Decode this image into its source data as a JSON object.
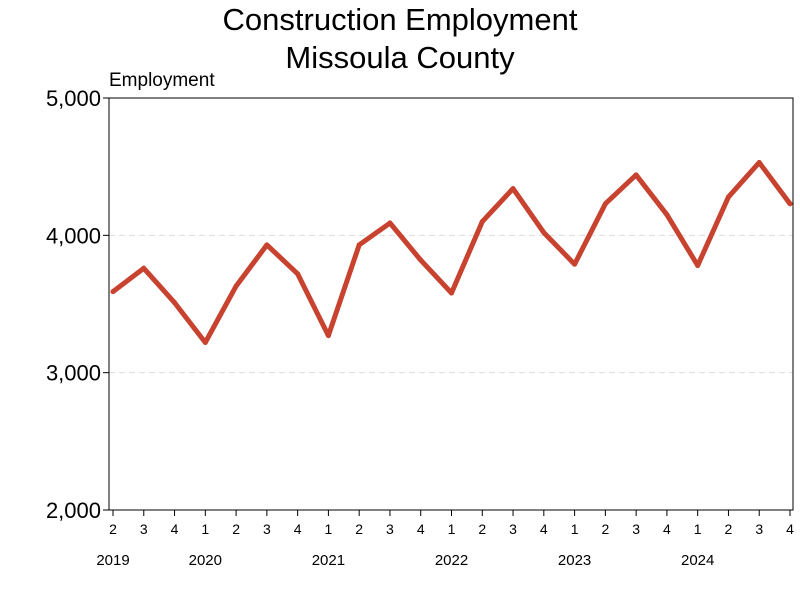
{
  "chart_data": {
    "type": "line",
    "title": [
      "Construction Employment",
      "Missoula County"
    ],
    "ylabel": "Employment",
    "ylim": [
      2000,
      5000
    ],
    "yticks": [
      2000,
      3000,
      4000,
      5000
    ],
    "ytick_labels": [
      "2,000",
      "3,000",
      "4,000",
      "5,000"
    ],
    "grid": "horizontal dashed",
    "line_color": "#c8432f",
    "x": [
      "2019 Q2",
      "2019 Q3",
      "2019 Q4",
      "2020 Q1",
      "2020 Q2",
      "2020 Q3",
      "2020 Q4",
      "2021 Q1",
      "2021 Q2",
      "2021 Q3",
      "2021 Q4",
      "2022 Q1",
      "2022 Q2",
      "2022 Q3",
      "2022 Q4",
      "2023 Q1",
      "2023 Q2",
      "2023 Q3",
      "2023 Q4",
      "2024 Q1",
      "2024 Q2",
      "2024 Q3",
      "2024 Q4"
    ],
    "quarter_labels": [
      "2",
      "3",
      "4",
      "1",
      "2",
      "3",
      "4",
      "1",
      "2",
      "3",
      "4",
      "1",
      "2",
      "3",
      "4",
      "1",
      "2",
      "3",
      "4",
      "1",
      "2",
      "3",
      "4"
    ],
    "year_labels": [
      {
        "label": "2019",
        "index": 0
      },
      {
        "label": "2020",
        "index": 3
      },
      {
        "label": "2021",
        "index": 7
      },
      {
        "label": "2022",
        "index": 11
      },
      {
        "label": "2023",
        "index": 15
      },
      {
        "label": "2024",
        "index": 19
      }
    ],
    "series": [
      {
        "values": [
          3590,
          3760,
          3510,
          3220,
          3630,
          3930,
          3720,
          3270,
          3930,
          4090,
          3820,
          3580,
          4100,
          4340,
          4020,
          3790,
          4230,
          4440,
          4150,
          3780,
          4280,
          4530,
          4230
        ]
      }
    ]
  }
}
